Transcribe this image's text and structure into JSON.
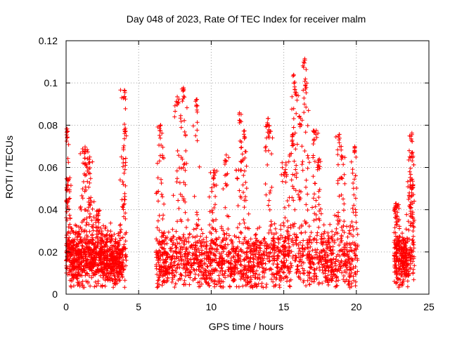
{
  "chart_data": {
    "type": "scatter",
    "title": "Day 048 of 2023, Rate Of TEC Index for receiver malm",
    "xlabel": "GPS time / hours",
    "ylabel": "ROTI / TECUs",
    "xlim": [
      0,
      25
    ],
    "ylim": [
      0,
      0.12
    ],
    "x_ticks": [
      "0",
      "5",
      "10",
      "15",
      "20",
      "25"
    ],
    "y_ticks": [
      "0",
      "0.02",
      "0.04",
      "0.06",
      "0.08",
      "0.1",
      "0.12"
    ],
    "grid": true,
    "marker": "+",
    "color": "#ff0000",
    "segments": [
      {
        "start": 0.0,
        "end": 4.15,
        "base": 0.017,
        "spread": 0.013,
        "peaks": [
          [
            0.05,
            0.08
          ],
          [
            0.1,
            0.055
          ],
          [
            1.3,
            0.07
          ],
          [
            1.6,
            0.065
          ],
          [
            2.2,
            0.04
          ],
          [
            4.0,
            0.098
          ],
          [
            4.05,
            0.082
          ]
        ]
      },
      {
        "start": 6.2,
        "end": 20.1,
        "base": 0.016,
        "spread": 0.014,
        "peaks": [
          [
            6.5,
            0.081
          ],
          [
            7.7,
            0.095
          ],
          [
            8.1,
            0.098
          ],
          [
            9.0,
            0.094
          ],
          [
            10.2,
            0.06
          ],
          [
            11.0,
            0.066
          ],
          [
            12.0,
            0.086
          ],
          [
            12.3,
            0.079
          ],
          [
            13.9,
            0.084
          ],
          [
            14.0,
            0.08
          ],
          [
            15.1,
            0.063
          ],
          [
            15.6,
            0.076
          ],
          [
            15.7,
            0.104
          ],
          [
            15.8,
            0.099
          ],
          [
            16.1,
            0.085
          ],
          [
            16.4,
            0.112
          ],
          [
            16.5,
            0.103
          ],
          [
            17.1,
            0.078
          ],
          [
            17.4,
            0.065
          ],
          [
            18.8,
            0.077
          ],
          [
            19.0,
            0.07
          ],
          [
            19.9,
            0.07
          ]
        ]
      },
      {
        "start": 22.6,
        "end": 24.0,
        "base": 0.016,
        "spread": 0.012,
        "peaks": [
          [
            22.7,
            0.043
          ],
          [
            23.8,
            0.077
          ],
          [
            23.85,
            0.068
          ],
          [
            23.9,
            0.056
          ]
        ]
      }
    ]
  }
}
